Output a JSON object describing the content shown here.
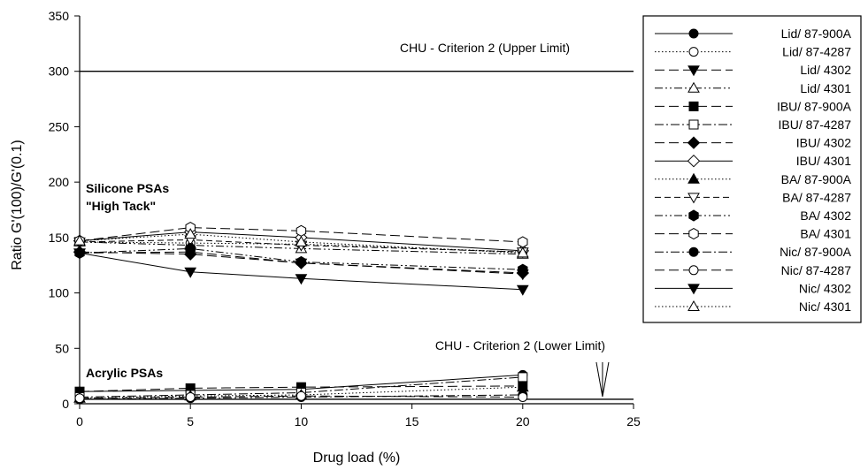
{
  "chart_data": {
    "type": "line",
    "title": "",
    "xlabel": "Drug load (%)",
    "ylabel": "Ratio G'(100)/G'(0.1)",
    "xlim": [
      0,
      25
    ],
    "ylim": [
      0,
      350
    ],
    "x_ticks": [
      0,
      5,
      10,
      15,
      20,
      25
    ],
    "y_ticks": [
      0,
      50,
      100,
      150,
      200,
      250,
      300,
      350
    ],
    "grid": false,
    "legend_position": "right",
    "x": [
      0,
      5,
      10,
      20
    ],
    "reference_lines": [
      {
        "y": 300,
        "label": "CHU - Criterion 2  (Upper Limit)"
      },
      {
        "y": 4,
        "label": "CHU - Criterion 2 (Lower Limit)"
      }
    ],
    "annotations": [
      {
        "text": "Silicone PSAs",
        "x": 0,
        "y": 200
      },
      {
        "text": "\"High Tack\"",
        "x": 0,
        "y": 185
      },
      {
        "text": "Acrylic PSAs",
        "x": 0,
        "y": 29
      }
    ],
    "series": [
      {
        "name": "Lid/ 87-900A",
        "marker": "circle-filled",
        "dash": "solid",
        "values": [
          11,
          12,
          13,
          26
        ]
      },
      {
        "name": "Lid/ 87-4287",
        "marker": "circle-open",
        "dash": "dotted",
        "values": [
          146,
          145,
          144,
          137
        ]
      },
      {
        "name": "Lid/ 4302",
        "marker": "triangle-down-filled",
        "dash": "longdash",
        "values": [
          136,
          137,
          127,
          117
        ]
      },
      {
        "name": "Lid/ 4301",
        "marker": "triangle-up-open",
        "dash": "dashdotdot",
        "values": [
          146,
          143,
          140,
          135
        ]
      },
      {
        "name": "IBU/ 87-900A",
        "marker": "square-filled",
        "dash": "longdash",
        "values": [
          11,
          14,
          15,
          16
        ]
      },
      {
        "name": "IBU/ 87-4287",
        "marker": "square-open",
        "dash": "dashdot",
        "values": [
          6,
          8,
          10,
          24
        ]
      },
      {
        "name": "IBU/ 4302",
        "marker": "diamond-filled",
        "dash": "longdash",
        "values": [
          137,
          135,
          127,
          118
        ]
      },
      {
        "name": "IBU/ 4301",
        "marker": "diamond-open",
        "dash": "solid",
        "values": [
          147,
          155,
          150,
          138
        ]
      },
      {
        "name": "BA/ 87-900A",
        "marker": "triangle-up-filled",
        "dash": "dotted",
        "values": [
          5,
          7,
          8,
          15
        ]
      },
      {
        "name": "BA/ 87-4287",
        "marker": "triangle-down-open",
        "dash": "dashed",
        "values": [
          146,
          148,
          143,
          137
        ]
      },
      {
        "name": "BA/ 4302",
        "marker": "hexagon-filled",
        "dash": "dashdotdot",
        "values": [
          136,
          140,
          128,
          121
        ]
      },
      {
        "name": "BA/ 4301",
        "marker": "hexagon-open",
        "dash": "longdash",
        "values": [
          147,
          159,
          156,
          146
        ]
      },
      {
        "name": "Nic/ 87-900A",
        "marker": "circle-filled",
        "dash": "dashdot",
        "values": [
          4,
          5,
          6,
          8
        ]
      },
      {
        "name": "Nic/ 87-4287",
        "marker": "circle-open",
        "dash": "longdash",
        "values": [
          5,
          6,
          7,
          6
        ]
      },
      {
        "name": "Nic/ 4302",
        "marker": "triangle-down-filled",
        "dash": "solid",
        "values": [
          136,
          119,
          113,
          103
        ]
      },
      {
        "name": "Nic/ 4301",
        "marker": "triangle-up-open",
        "dash": "dotted",
        "values": [
          147,
          153,
          146,
          136
        ]
      }
    ]
  }
}
